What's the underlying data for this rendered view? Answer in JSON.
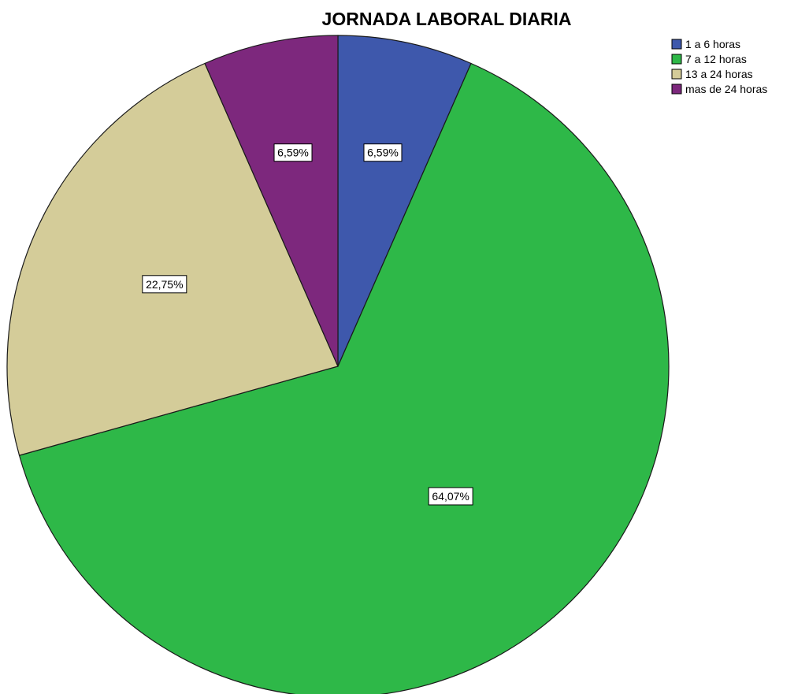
{
  "chart_data": {
    "type": "pie",
    "title": "JORNADA LABORAL DIARIA",
    "categories": [
      "1  a 6 horas",
      "7 a 12 horas",
      "13 a 24 horas",
      "mas de 24 horas"
    ],
    "values": [
      6.59,
      64.07,
      22.75,
      6.59
    ],
    "data_labels": [
      "6,59%",
      "64,07%",
      "22,75%",
      "6,59%"
    ],
    "colors": [
      "#3e58ac",
      "#2eb848",
      "#d4cc99",
      "#7d287d"
    ],
    "start_angle_deg": 0,
    "direction": "clockwise",
    "legend_placement": "top-right"
  }
}
